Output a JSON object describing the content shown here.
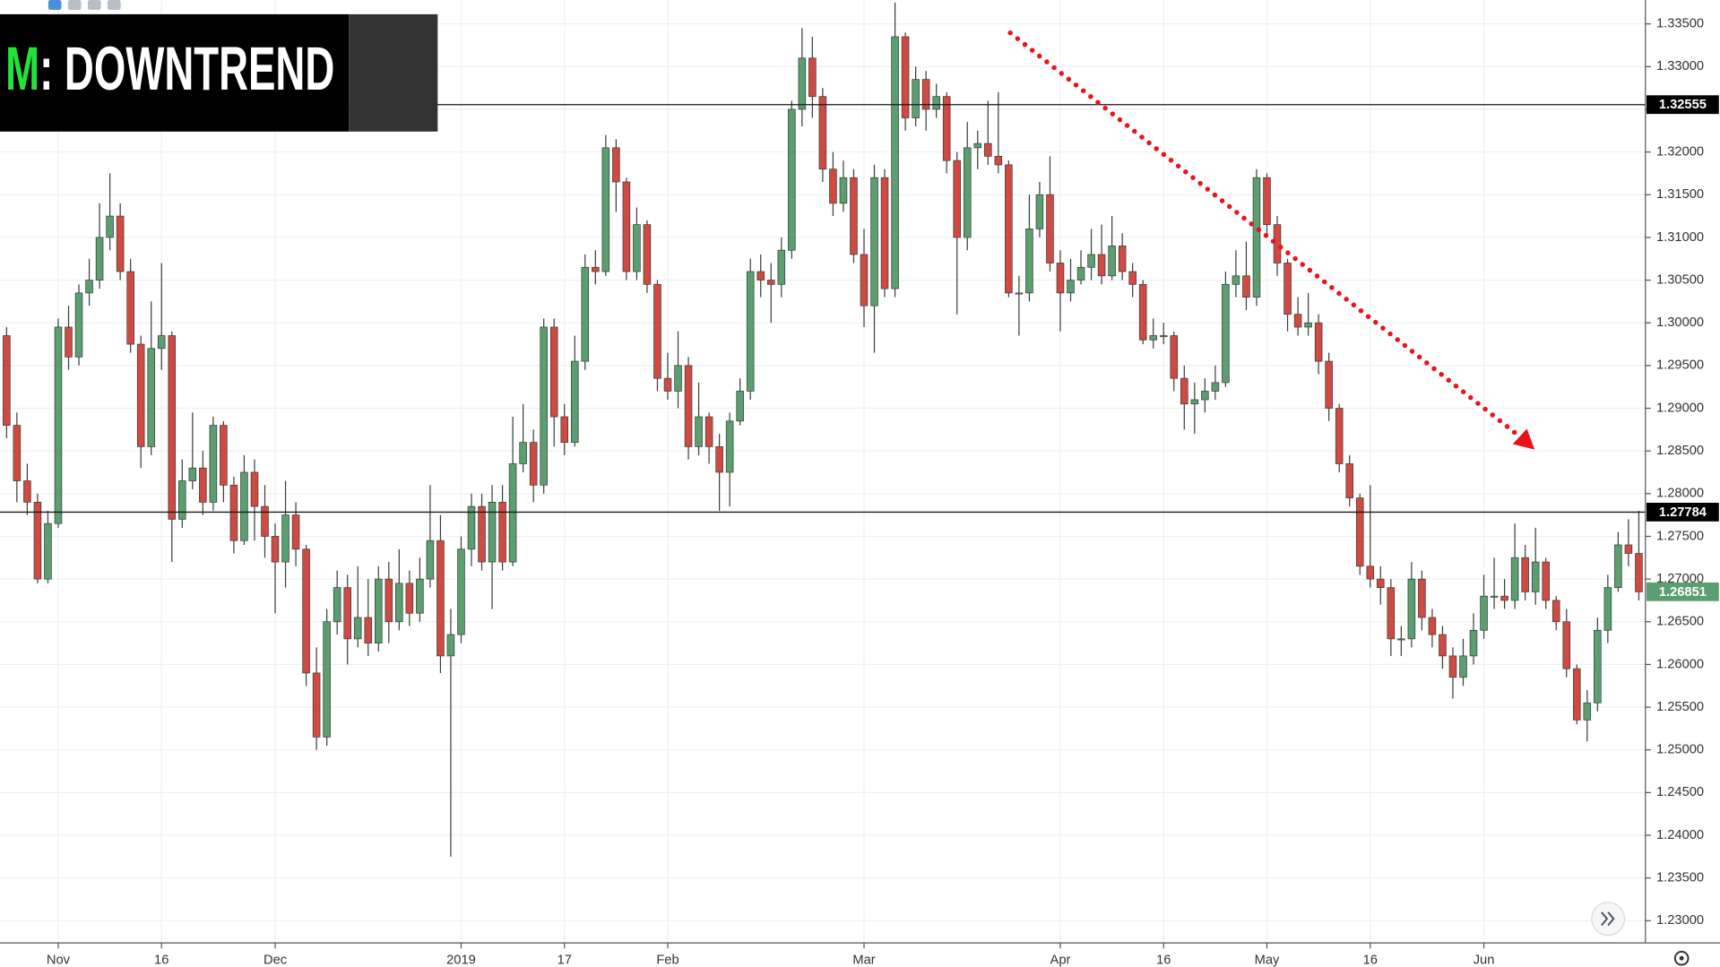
{
  "chart_data": {
    "type": "candlestick",
    "title_prefix": "M",
    "title": ": DOWNTREND",
    "categories": [
      null,
      null,
      null,
      null,
      null,
      "Nov",
      null,
      null,
      null,
      null,
      null,
      null,
      null,
      null,
      null,
      "16",
      null,
      null,
      null,
      null,
      null,
      null,
      null,
      null,
      null,
      null,
      "Dec",
      null,
      null,
      null,
      null,
      null,
      null,
      null,
      null,
      null,
      null,
      null,
      null,
      null,
      null,
      null,
      null,
      null,
      "2019",
      null,
      null,
      null,
      null,
      null,
      null,
      null,
      null,
      null,
      "17",
      null,
      null,
      null,
      null,
      null,
      null,
      null,
      null,
      null,
      "Feb",
      null,
      null,
      null,
      null,
      null,
      null,
      null,
      null,
      null,
      null,
      null,
      null,
      null,
      null,
      null,
      null,
      null,
      null,
      "Mar",
      null,
      null,
      null,
      null,
      null,
      null,
      null,
      null,
      null,
      null,
      null,
      null,
      null,
      null,
      null,
      null,
      null,
      null,
      "Apr",
      null,
      null,
      null,
      null,
      null,
      null,
      null,
      null,
      null,
      "16",
      null,
      null,
      null,
      null,
      null,
      null,
      null,
      null,
      null,
      "May",
      null,
      null,
      null,
      null,
      null,
      null,
      null,
      null,
      null,
      "16",
      null,
      null,
      null,
      null,
      null,
      null,
      null,
      null,
      null,
      null,
      "Jun",
      null,
      null,
      null,
      null,
      null,
      null,
      null,
      null,
      null,
      null,
      null,
      null,
      null,
      null,
      null
    ],
    "open": [
      1.2985,
      1.288,
      1.2815,
      1.279,
      1.27,
      1.2765,
      1.2995,
      1.296,
      1.3035,
      1.305,
      1.31,
      1.3125,
      1.306,
      1.2975,
      1.2855,
      1.297,
      1.2985,
      1.277,
      1.2815,
      1.283,
      1.279,
      1.288,
      1.281,
      1.2745,
      1.2825,
      1.2785,
      1.275,
      1.272,
      1.2775,
      1.2735,
      1.259,
      1.2515,
      1.265,
      1.269,
      1.263,
      1.2655,
      1.2625,
      1.27,
      1.265,
      1.2695,
      1.266,
      1.27,
      1.2745,
      1.261,
      1.2635,
      1.2735,
      1.2785,
      1.272,
      1.279,
      1.272,
      1.2835,
      1.286,
      1.281,
      1.2995,
      1.289,
      1.286,
      1.2955,
      1.3065,
      1.306,
      1.3205,
      1.3165,
      1.306,
      1.3115,
      1.3045,
      1.2935,
      1.292,
      1.295,
      1.2855,
      1.289,
      1.2855,
      1.2825,
      1.2885,
      1.292,
      1.306,
      1.305,
      1.3045,
      1.3085,
      1.325,
      1.331,
      1.3265,
      1.318,
      1.314,
      1.317,
      1.308,
      1.302,
      1.317,
      1.304,
      1.3335,
      1.324,
      1.3285,
      1.325,
      1.3265,
      1.319,
      1.31,
      1.3205,
      1.321,
      1.3195,
      1.3185,
      1.3035,
      1.3035,
      1.311,
      1.315,
      1.307,
      1.3035,
      1.305,
      1.3065,
      1.308,
      1.3055,
      1.309,
      1.306,
      1.3045,
      1.298,
      1.2985,
      1.2985,
      1.2935,
      1.2905,
      1.291,
      1.292,
      1.293,
      1.3045,
      1.3055,
      1.303,
      1.317,
      1.3115,
      1.307,
      1.301,
      1.2995,
      1.3,
      1.2955,
      1.29,
      1.2835,
      1.2795,
      1.2715,
      1.27,
      1.269,
      1.263,
      1.263,
      1.27,
      1.2655,
      1.2635,
      1.261,
      1.2585,
      1.261,
      1.264,
      1.268,
      1.268,
      1.2675,
      1.2725,
      1.2685,
      1.272,
      1.2675,
      1.265,
      1.2595,
      1.2535,
      1.2555,
      1.264,
      1.269,
      1.274,
      1.273
    ],
    "high": [
      1.2995,
      1.2895,
      1.2835,
      1.28,
      1.278,
      1.3005,
      1.302,
      1.3045,
      1.3075,
      1.314,
      1.3175,
      1.314,
      1.3075,
      1.2985,
      1.3025,
      1.307,
      1.299,
      1.284,
      1.2895,
      1.285,
      1.289,
      1.2885,
      1.282,
      1.2845,
      1.284,
      1.281,
      1.2765,
      1.2815,
      1.279,
      1.274,
      1.262,
      1.2665,
      1.271,
      1.2705,
      1.2715,
      1.27,
      1.2715,
      1.272,
      1.2735,
      1.271,
      1.2725,
      1.281,
      1.2775,
      1.2665,
      1.275,
      1.28,
      1.28,
      1.281,
      1.281,
      1.289,
      1.2905,
      1.2875,
      1.3005,
      1.3005,
      1.2905,
      1.2985,
      1.308,
      1.3085,
      1.322,
      1.3215,
      1.317,
      1.3135,
      1.312,
      1.305,
      1.2965,
      1.299,
      1.296,
      1.293,
      1.2895,
      1.287,
      1.2895,
      1.2935,
      1.3075,
      1.308,
      1.307,
      1.31,
      1.326,
      1.3345,
      1.3335,
      1.3275,
      1.32,
      1.319,
      1.318,
      1.311,
      1.3185,
      1.318,
      1.3375,
      1.334,
      1.33,
      1.3295,
      1.328,
      1.327,
      1.32,
      1.3235,
      1.3225,
      1.326,
      1.327,
      1.319,
      1.3055,
      1.315,
      1.3165,
      1.3195,
      1.3085,
      1.3075,
      1.3085,
      1.311,
      1.3115,
      1.3125,
      1.3105,
      1.307,
      1.305,
      1.3005,
      1.3,
      1.299,
      1.295,
      1.293,
      1.2935,
      1.295,
      1.306,
      1.3085,
      1.3095,
      1.318,
      1.3175,
      1.3125,
      1.3075,
      1.303,
      1.3035,
      1.301,
      1.2965,
      1.2905,
      1.2845,
      1.28,
      1.281,
      1.2715,
      1.27,
      1.2645,
      1.272,
      1.271,
      1.2665,
      1.2645,
      1.262,
      1.263,
      1.266,
      1.2705,
      1.2725,
      1.27,
      1.2765,
      1.274,
      1.276,
      1.2725,
      1.268,
      1.2665,
      1.26,
      1.257,
      1.2655,
      1.2705,
      1.2755,
      1.277,
      1.278
    ],
    "low": [
      1.2865,
      1.279,
      1.2775,
      1.2695,
      1.2695,
      1.276,
      1.2945,
      1.295,
      1.302,
      1.304,
      1.3085,
      1.305,
      1.2965,
      1.283,
      1.2845,
      1.2945,
      1.272,
      1.276,
      1.2805,
      1.2775,
      1.278,
      1.279,
      1.273,
      1.274,
      1.2745,
      1.2725,
      1.266,
      1.269,
      1.2715,
      1.2575,
      1.25,
      1.2505,
      1.2635,
      1.26,
      1.262,
      1.261,
      1.2615,
      1.2625,
      1.264,
      1.2645,
      1.265,
      1.269,
      1.259,
      1.2375,
      1.2625,
      1.2715,
      1.271,
      1.2665,
      1.271,
      1.2715,
      1.2825,
      1.279,
      1.28,
      1.2855,
      1.2845,
      1.2855,
      1.2945,
      1.3045,
      1.3055,
      1.313,
      1.305,
      1.305,
      1.3035,
      1.292,
      1.291,
      1.29,
      1.284,
      1.2845,
      1.2835,
      1.278,
      1.2785,
      1.288,
      1.291,
      1.303,
      1.3,
      1.303,
      1.3075,
      1.323,
      1.324,
      1.3165,
      1.3125,
      1.313,
      1.307,
      1.2995,
      1.2965,
      1.303,
      1.303,
      1.3225,
      1.323,
      1.3225,
      1.324,
      1.3175,
      1.301,
      1.3085,
      1.318,
      1.3185,
      1.3175,
      1.303,
      1.2985,
      1.3025,
      1.31,
      1.306,
      1.299,
      1.3025,
      1.3045,
      1.305,
      1.3045,
      1.305,
      1.305,
      1.303,
      1.2975,
      1.297,
      1.2975,
      1.292,
      1.2875,
      1.287,
      1.2895,
      1.291,
      1.2925,
      1.303,
      1.3015,
      1.302,
      1.31,
      1.3055,
      1.299,
      1.2985,
      1.2985,
      1.294,
      1.2885,
      1.2825,
      1.2785,
      1.2705,
      1.269,
      1.267,
      1.261,
      1.261,
      1.262,
      1.264,
      1.262,
      1.2595,
      1.256,
      1.2575,
      1.26,
      1.263,
      1.2665,
      1.2665,
      1.2665,
      1.2675,
      1.267,
      1.2665,
      1.264,
      1.2585,
      1.253,
      1.251,
      1.2545,
      1.2625,
      1.2685,
      1.2715,
      1.2675
    ],
    "close": [
      1.288,
      1.2815,
      1.279,
      1.27,
      1.2765,
      1.2995,
      1.296,
      1.3035,
      1.305,
      1.31,
      1.3125,
      1.306,
      1.2975,
      1.2855,
      1.297,
      1.2985,
      1.277,
      1.2815,
      1.283,
      1.279,
      1.288,
      1.281,
      1.2745,
      1.2825,
      1.2785,
      1.275,
      1.272,
      1.2775,
      1.2735,
      1.259,
      1.2515,
      1.265,
      1.269,
      1.263,
      1.2655,
      1.2625,
      1.27,
      1.265,
      1.2695,
      1.266,
      1.27,
      1.2745,
      1.261,
      1.2635,
      1.2735,
      1.2785,
      1.272,
      1.279,
      1.272,
      1.2835,
      1.286,
      1.281,
      1.2995,
      1.289,
      1.286,
      1.2955,
      1.3065,
      1.306,
      1.3205,
      1.3165,
      1.306,
      1.3115,
      1.3045,
      1.2935,
      1.292,
      1.295,
      1.2855,
      1.289,
      1.2855,
      1.2825,
      1.2885,
      1.292,
      1.306,
      1.305,
      1.3045,
      1.3085,
      1.325,
      1.331,
      1.3265,
      1.318,
      1.314,
      1.317,
      1.308,
      1.302,
      1.317,
      1.304,
      1.3335,
      1.324,
      1.3285,
      1.325,
      1.3265,
      1.319,
      1.31,
      1.3205,
      1.321,
      1.3195,
      1.3185,
      1.3035,
      1.3035,
      1.311,
      1.315,
      1.307,
      1.3035,
      1.305,
      1.3065,
      1.308,
      1.3055,
      1.309,
      1.306,
      1.3045,
      1.298,
      1.2985,
      1.2985,
      1.2935,
      1.2905,
      1.291,
      1.292,
      1.293,
      1.3045,
      1.3055,
      1.303,
      1.317,
      1.3115,
      1.307,
      1.301,
      1.2995,
      1.3,
      1.2955,
      1.29,
      1.2835,
      1.2795,
      1.2715,
      1.27,
      1.269,
      1.263,
      1.263,
      1.27,
      1.2655,
      1.2635,
      1.261,
      1.2585,
      1.261,
      1.264,
      1.268,
      1.268,
      1.2675,
      1.2725,
      1.2685,
      1.272,
      1.2675,
      1.265,
      1.2595,
      1.2535,
      1.2555,
      1.264,
      1.269,
      1.274,
      1.273,
      1.2685
    ],
    "up_color": "#5b9e70",
    "down_color": "#cf4a42",
    "wick_color": "#3a3f3c",
    "ylim": [
      1.2274,
      1.3378
    ],
    "yticks": [
      {
        "value": 1.23,
        "label": "1.23000"
      },
      {
        "value": 1.235,
        "label": "1.23500"
      },
      {
        "value": 1.24,
        "label": "1.24000"
      },
      {
        "value": 1.245,
        "label": "1.24500"
      },
      {
        "value": 1.25,
        "label": "1.25000"
      },
      {
        "value": 1.255,
        "label": "1.25500"
      },
      {
        "value": 1.26,
        "label": "1.26000"
      },
      {
        "value": 1.265,
        "label": "1.26500"
      },
      {
        "value": 1.27,
        "label": "1.27000"
      },
      {
        "value": 1.275,
        "label": "1.27500"
      },
      {
        "value": 1.28,
        "label": "1.28000"
      },
      {
        "value": 1.285,
        "label": "1.28500"
      },
      {
        "value": 1.29,
        "label": "1.29000"
      },
      {
        "value": 1.295,
        "label": "1.29500"
      },
      {
        "value": 1.3,
        "label": "1.30000"
      },
      {
        "value": 1.305,
        "label": "1.30500"
      },
      {
        "value": 1.31,
        "label": "1.31000"
      },
      {
        "value": 1.315,
        "label": "1.31500"
      },
      {
        "value": 1.32,
        "label": "1.32000"
      },
      {
        "value": 1.325,
        "label": "1.32500"
      },
      {
        "value": 1.33,
        "label": "1.33000"
      },
      {
        "value": 1.335,
        "label": "1.33500"
      }
    ],
    "hlines": [
      1.32555,
      1.27784
    ],
    "last_price": 1.26851,
    "grid": true
  }
}
